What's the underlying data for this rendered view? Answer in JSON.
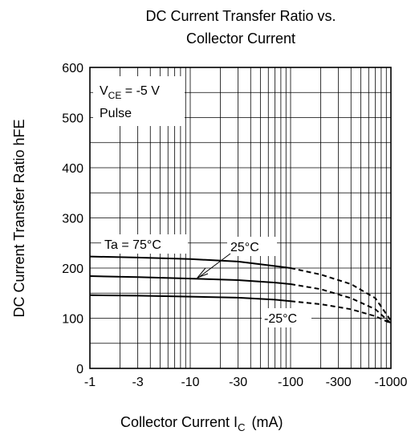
{
  "chart_data": {
    "type": "line",
    "title_line1": "DC Current Transfer Ratio vs.",
    "title_line2": "Collector Current",
    "ylabel": "DC Current Transfer Ratio   hFE",
    "xlabel_main": "Collector Current   I",
    "xlabel_sub": "C",
    "xlabel_unit": "(mA)",
    "x_scale": "log",
    "x_range": [
      -1,
      -1000
    ],
    "y_range": [
      0,
      600
    ],
    "x_ticks": [
      -1,
      -3,
      -10,
      -30,
      -100,
      -300,
      -1000
    ],
    "x_tick_labels": [
      "-1",
      "-3",
      "-10",
      "-30",
      "-100",
      "-300",
      "-1000"
    ],
    "y_ticks": [
      0,
      100,
      200,
      300,
      400,
      500,
      600
    ],
    "y_tick_labels": [
      "0",
      "100",
      "200",
      "300",
      "400",
      "500",
      "600"
    ],
    "grid": true,
    "conditions": {
      "vce_main": "V",
      "vce_sub": "CE",
      "vce_value": " = -5 V",
      "pulse": "Pulse"
    },
    "series": [
      {
        "name": "Ta = 75°C",
        "solid": [
          [
            -1,
            223
          ],
          [
            -3,
            221
          ],
          [
            -10,
            218
          ],
          [
            -30,
            213
          ],
          [
            -70,
            204
          ],
          [
            -100,
            200
          ]
        ],
        "dashed": [
          [
            -100,
            200
          ],
          [
            -200,
            187
          ],
          [
            -400,
            168
          ],
          [
            -700,
            140
          ],
          [
            -1000,
            95
          ]
        ]
      },
      {
        "name": "25°C",
        "solid": [
          [
            -1,
            184
          ],
          [
            -3,
            182
          ],
          [
            -10,
            179
          ],
          [
            -30,
            176
          ],
          [
            -70,
            171
          ],
          [
            -100,
            168
          ]
        ],
        "dashed": [
          [
            -100,
            168
          ],
          [
            -200,
            158
          ],
          [
            -400,
            140
          ],
          [
            -700,
            118
          ],
          [
            -1000,
            90
          ]
        ]
      },
      {
        "name": "-25°C",
        "solid": [
          [
            -1,
            146
          ],
          [
            -3,
            145
          ],
          [
            -10,
            143
          ],
          [
            -30,
            141
          ],
          [
            -70,
            137
          ],
          [
            -100,
            134
          ]
        ],
        "dashed": [
          [
            -100,
            134
          ],
          [
            -200,
            128
          ],
          [
            -400,
            118
          ],
          [
            -700,
            104
          ],
          [
            -1000,
            90
          ]
        ]
      }
    ],
    "annotations": {
      "ta75": "Ta = 75°C",
      "t25": "25°C",
      "tm25": "-25°C"
    }
  }
}
